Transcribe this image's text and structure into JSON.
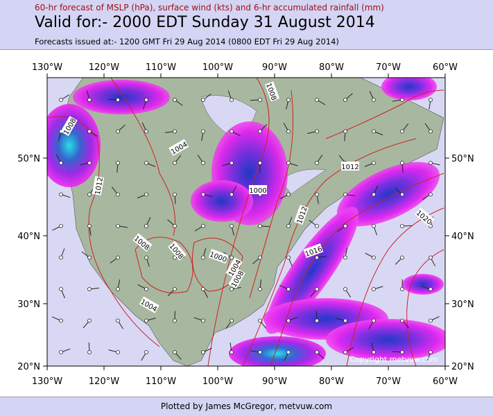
{
  "header": {
    "line1": "60-hr forecast of MSLP (hPa), surface wind (kts) and 6-hr accumulated rainfall (mm)",
    "title": "Valid for:- 2000 EDT Sunday 31 August 2014",
    "issued": "Forecasts issued at:- 1200 GMT Fri 29 Aug 2014 (0800 EDT Fri 29 Aug 2014)"
  },
  "map": {
    "lon_labels": [
      "130°W",
      "120°W",
      "110°W",
      "100°W",
      "90°W",
      "80°W",
      "70°W",
      "60°W"
    ],
    "lat_labels": [
      "50°N",
      "40°N",
      "30°N",
      "20°N"
    ],
    "isobar_labels": [
      "1008",
      "1004",
      "1012",
      "1008",
      "1000",
      "1012",
      "1012",
      "1020",
      "1016",
      "1008",
      "1008",
      "1000",
      "1004",
      "1008",
      "1004"
    ],
    "copyright": "Copyright metvuw.com"
  },
  "footer": "Plotted by James McGregor, metvuw.com"
}
